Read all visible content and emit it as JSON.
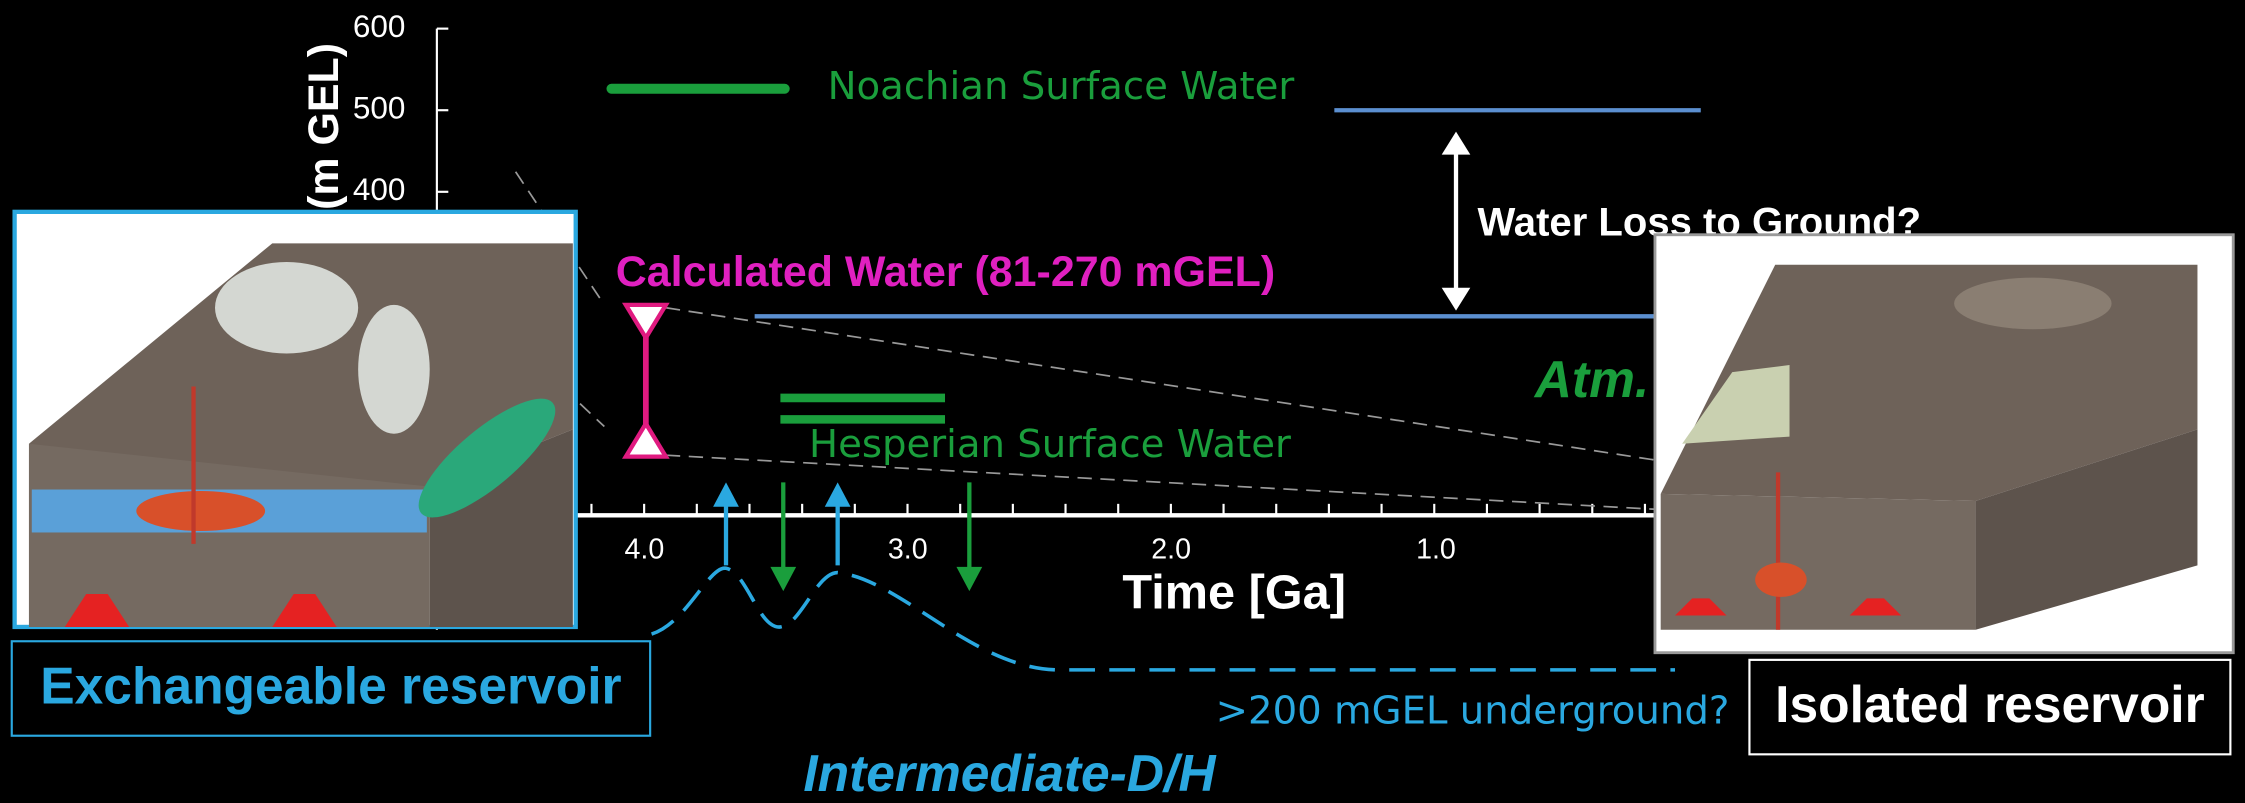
{
  "axis": {
    "y_label": "(m GEL)",
    "y_ticks": [
      "600",
      "500",
      "400"
    ],
    "x_ticks": [
      "4.0",
      "3.0",
      "2.0",
      "1.0"
    ],
    "x_label": "Time [Ga]"
  },
  "labels": {
    "noachian": "Noachian Surface Water",
    "water_loss": "Water Loss to Ground?",
    "calculated": "Calculated Water (81-270 mGEL)",
    "atm": "Atm.",
    "hesperian": "Hesperian Surface Water",
    "underground": ">200 mGEL underground?",
    "intermediate": "Intermediate-D/H"
  },
  "insets": {
    "left": "Exchangeable reservoir",
    "right": "Isolated reservoir"
  }
}
